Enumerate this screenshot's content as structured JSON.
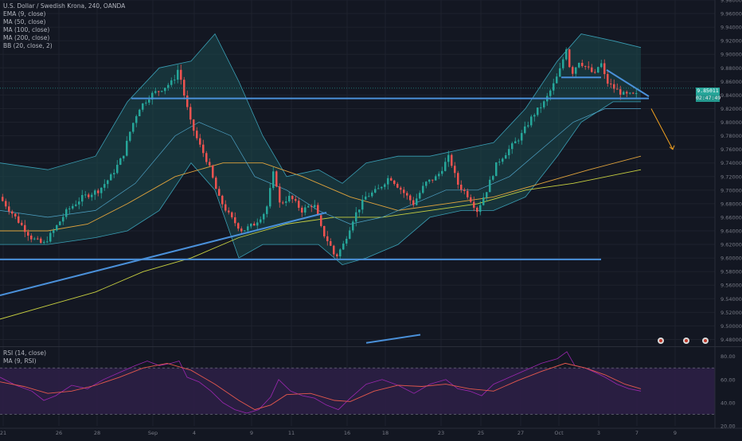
{
  "colors": {
    "background": "#131722",
    "grid": "#1e222d",
    "up_candle": "#26a69a",
    "down_candle": "#ef5350",
    "bb_fill": "#1b4a4f",
    "bb_line": "#3a9fb5",
    "ema9": "#2b3a3a",
    "ma50": "#4fa3c7",
    "ma100": "#e0a33c",
    "ma200": "#c8d040",
    "trendline": "#4a90d9",
    "arrow": "#f0a020",
    "rsi_line": "#9c27b0",
    "rsi_ma": "#e5584d",
    "rsi_band": "#2c1f45"
  },
  "legend": {
    "title": "U.S. Dollar / Swedish Krona, 240, OANDA",
    "ema": "EMA (9, close)",
    "ma50": "MA (50, close)",
    "ma100": "MA (100, close)",
    "ma200": "MA (200, close)",
    "bb": "BB (20, close, 2)"
  },
  "rsi_legend": {
    "rsi": "RSI (14, close)",
    "ma": "MA (9, RSI)"
  },
  "price_tags": {
    "last": "9.85011",
    "countdown": "02:47:49"
  },
  "chart_data": [
    {
      "type": "line",
      "title": "U.S. Dollar / Swedish Krona, 240, OANDA",
      "ylim": [
        9.47,
        9.98
      ],
      "y_ticks": [
        "9.48000",
        "9.50000",
        "9.52000",
        "9.54000",
        "9.56000",
        "9.58000",
        "9.60000",
        "9.62000",
        "9.64000",
        "9.66000",
        "9.68000",
        "9.70000",
        "9.72000",
        "9.74000",
        "9.76000",
        "9.78000",
        "9.80000",
        "9.82000",
        "9.84000",
        "9.86000",
        "9.88000",
        "9.90000",
        "9.92000",
        "9.94000",
        "9.96000",
        "9.98000"
      ],
      "x_ticks": [
        "21",
        "26",
        "28",
        "Sep",
        "4",
        "9",
        "11",
        "16",
        "18",
        "23",
        "25",
        "27",
        "Oct",
        "3",
        "7",
        "9"
      ],
      "price_path": [
        [
          0,
          9.69
        ],
        [
          20,
          9.66
        ],
        [
          40,
          9.63
        ],
        [
          55,
          9.62
        ],
        [
          68,
          9.64
        ],
        [
          85,
          9.67
        ],
        [
          105,
          9.69
        ],
        [
          125,
          9.7
        ],
        [
          140,
          9.72
        ],
        [
          155,
          9.75
        ],
        [
          165,
          9.79
        ],
        [
          175,
          9.82
        ],
        [
          190,
          9.84
        ],
        [
          205,
          9.85
        ],
        [
          218,
          9.86
        ],
        [
          225,
          9.88
        ],
        [
          232,
          9.84
        ],
        [
          240,
          9.8
        ],
        [
          250,
          9.77
        ],
        [
          262,
          9.74
        ],
        [
          275,
          9.69
        ],
        [
          290,
          9.66
        ],
        [
          305,
          9.64
        ],
        [
          320,
          9.65
        ],
        [
          335,
          9.67
        ],
        [
          345,
          9.73
        ],
        [
          352,
          9.68
        ],
        [
          365,
          9.69
        ],
        [
          380,
          9.67
        ],
        [
          395,
          9.68
        ],
        [
          405,
          9.64
        ],
        [
          415,
          9.62
        ],
        [
          422,
          9.6
        ],
        [
          432,
          9.62
        ],
        [
          445,
          9.66
        ],
        [
          460,
          9.69
        ],
        [
          475,
          9.7
        ],
        [
          490,
          9.72
        ],
        [
          505,
          9.7
        ],
        [
          520,
          9.68
        ],
        [
          535,
          9.71
        ],
        [
          550,
          9.72
        ],
        [
          565,
          9.75
        ],
        [
          575,
          9.71
        ],
        [
          590,
          9.69
        ],
        [
          600,
          9.67
        ],
        [
          612,
          9.7
        ],
        [
          625,
          9.74
        ],
        [
          640,
          9.76
        ],
        [
          655,
          9.78
        ],
        [
          670,
          9.81
        ],
        [
          685,
          9.83
        ],
        [
          698,
          9.86
        ],
        [
          705,
          9.88
        ],
        [
          712,
          9.91
        ],
        [
          718,
          9.87
        ],
        [
          728,
          9.89
        ],
        [
          738,
          9.88
        ],
        [
          748,
          9.87
        ],
        [
          755,
          9.89
        ],
        [
          762,
          9.86
        ],
        [
          772,
          9.85
        ],
        [
          785,
          9.84
        ],
        [
          800,
          9.84
        ]
      ],
      "bb_upper": [
        [
          0,
          9.74
        ],
        [
          60,
          9.73
        ],
        [
          120,
          9.75
        ],
        [
          160,
          9.83
        ],
        [
          200,
          9.88
        ],
        [
          240,
          9.89
        ],
        [
          270,
          9.93
        ],
        [
          300,
          9.86
        ],
        [
          330,
          9.78
        ],
        [
          360,
          9.72
        ],
        [
          400,
          9.73
        ],
        [
          430,
          9.71
        ],
        [
          460,
          9.74
        ],
        [
          500,
          9.75
        ],
        [
          540,
          9.75
        ],
        [
          580,
          9.76
        ],
        [
          620,
          9.77
        ],
        [
          660,
          9.82
        ],
        [
          700,
          9.89
        ],
        [
          730,
          9.93
        ],
        [
          770,
          9.92
        ],
        [
          805,
          9.91
        ]
      ],
      "bb_lower": [
        [
          0,
          9.62
        ],
        [
          60,
          9.62
        ],
        [
          120,
          9.63
        ],
        [
          160,
          9.64
        ],
        [
          200,
          9.67
        ],
        [
          240,
          9.74
        ],
        [
          270,
          9.7
        ],
        [
          300,
          9.6
        ],
        [
          330,
          9.62
        ],
        [
          360,
          9.62
        ],
        [
          400,
          9.62
        ],
        [
          430,
          9.59
        ],
        [
          460,
          9.6
        ],
        [
          500,
          9.62
        ],
        [
          540,
          9.66
        ],
        [
          580,
          9.67
        ],
        [
          620,
          9.67
        ],
        [
          660,
          9.69
        ],
        [
          700,
          9.75
        ],
        [
          730,
          9.8
        ],
        [
          770,
          9.83
        ],
        [
          805,
          9.83
        ]
      ],
      "ma50": [
        [
          0,
          9.67
        ],
        [
          60,
          9.66
        ],
        [
          120,
          9.67
        ],
        [
          170,
          9.71
        ],
        [
          220,
          9.78
        ],
        [
          250,
          9.8
        ],
        [
          290,
          9.78
        ],
        [
          320,
          9.72
        ],
        [
          360,
          9.7
        ],
        [
          400,
          9.67
        ],
        [
          440,
          9.65
        ],
        [
          480,
          9.66
        ],
        [
          520,
          9.68
        ],
        [
          560,
          9.7
        ],
        [
          600,
          9.7
        ],
        [
          640,
          9.72
        ],
        [
          680,
          9.76
        ],
        [
          720,
          9.8
        ],
        [
          760,
          9.82
        ],
        [
          805,
          9.82
        ]
      ],
      "ma100": [
        [
          0,
          9.64
        ],
        [
          60,
          9.64
        ],
        [
          110,
          9.65
        ],
        [
          160,
          9.68
        ],
        [
          220,
          9.72
        ],
        [
          280,
          9.74
        ],
        [
          330,
          9.74
        ],
        [
          380,
          9.72
        ],
        [
          440,
          9.69
        ],
        [
          500,
          9.67
        ],
        [
          560,
          9.68
        ],
        [
          620,
          9.69
        ],
        [
          680,
          9.71
        ],
        [
          740,
          9.73
        ],
        [
          805,
          9.75
        ]
      ],
      "ma200": [
        [
          0,
          9.51
        ],
        [
          60,
          9.53
        ],
        [
          120,
          9.55
        ],
        [
          180,
          9.58
        ],
        [
          240,
          9.6
        ],
        [
          300,
          9.63
        ],
        [
          360,
          9.65
        ],
        [
          420,
          9.66
        ],
        [
          480,
          9.66
        ],
        [
          540,
          9.67
        ],
        [
          600,
          9.68
        ],
        [
          660,
          9.7
        ],
        [
          720,
          9.71
        ],
        [
          805,
          9.73
        ]
      ],
      "hlines": [
        {
          "y": 9.835,
          "x_start": 165,
          "x_end": 815
        },
        {
          "y": 9.598,
          "x_start": 0,
          "x_end": 755
        }
      ],
      "trendlines": [
        {
          "x1": 0,
          "y1": 9.545,
          "x2": 410,
          "y2": 9.667
        },
        {
          "x1": 460,
          "y1": 9.475,
          "x2": 528,
          "y2": 9.487
        },
        {
          "x1": 762,
          "y1": 9.877,
          "x2": 815,
          "y2": 9.838
        },
        {
          "x1": 705,
          "y1": 9.866,
          "x2": 755,
          "y2": 9.866
        }
      ],
      "arrow": {
        "x1": 818,
        "y1": 9.82,
        "x2": 845,
        "y2": 9.76
      }
    },
    {
      "type": "line",
      "title": "RSI (14, close)",
      "ylim": [
        20,
        88
      ],
      "y_ticks": [
        "20.00",
        "40.00",
        "60.00",
        "80.00"
      ],
      "bands": [
        30,
        70
      ],
      "rsi": [
        [
          0,
          62
        ],
        [
          20,
          55
        ],
        [
          40,
          50
        ],
        [
          55,
          42
        ],
        [
          70,
          46
        ],
        [
          90,
          55
        ],
        [
          110,
          52
        ],
        [
          130,
          60
        ],
        [
          150,
          66
        ],
        [
          170,
          72
        ],
        [
          185,
          76
        ],
        [
          200,
          72
        ],
        [
          215,
          74
        ],
        [
          225,
          76
        ],
        [
          235,
          62
        ],
        [
          250,
          58
        ],
        [
          265,
          50
        ],
        [
          280,
          40
        ],
        [
          295,
          34
        ],
        [
          310,
          31
        ],
        [
          325,
          34
        ],
        [
          340,
          45
        ],
        [
          350,
          60
        ],
        [
          365,
          50
        ],
        [
          380,
          46
        ],
        [
          395,
          44
        ],
        [
          410,
          38
        ],
        [
          425,
          34
        ],
        [
          440,
          44
        ],
        [
          460,
          56
        ],
        [
          480,
          60
        ],
        [
          500,
          55
        ],
        [
          520,
          48
        ],
        [
          540,
          56
        ],
        [
          560,
          60
        ],
        [
          575,
          52
        ],
        [
          590,
          50
        ],
        [
          605,
          46
        ],
        [
          620,
          56
        ],
        [
          640,
          62
        ],
        [
          660,
          68
        ],
        [
          680,
          74
        ],
        [
          700,
          78
        ],
        [
          712,
          84
        ],
        [
          722,
          72
        ],
        [
          735,
          70
        ],
        [
          748,
          66
        ],
        [
          760,
          62
        ],
        [
          775,
          56
        ],
        [
          790,
          52
        ],
        [
          805,
          50
        ]
      ],
      "rsi_ma": [
        [
          0,
          58
        ],
        [
          30,
          54
        ],
        [
          60,
          48
        ],
        [
          90,
          50
        ],
        [
          120,
          55
        ],
        [
          150,
          62
        ],
        [
          180,
          70
        ],
        [
          210,
          74
        ],
        [
          240,
          68
        ],
        [
          270,
          56
        ],
        [
          300,
          42
        ],
        [
          320,
          34
        ],
        [
          340,
          38
        ],
        [
          360,
          47
        ],
        [
          390,
          48
        ],
        [
          420,
          42
        ],
        [
          440,
          41
        ],
        [
          470,
          50
        ],
        [
          500,
          55
        ],
        [
          530,
          54
        ],
        [
          560,
          56
        ],
        [
          590,
          52
        ],
        [
          620,
          50
        ],
        [
          650,
          59
        ],
        [
          680,
          67
        ],
        [
          710,
          74
        ],
        [
          735,
          70
        ],
        [
          760,
          64
        ],
        [
          785,
          56
        ],
        [
          805,
          52
        ]
      ]
    }
  ]
}
